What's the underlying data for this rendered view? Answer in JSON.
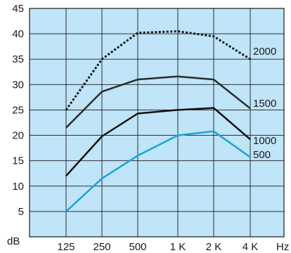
{
  "chart_data": {
    "type": "line",
    "x_categories": [
      "125",
      "250",
      "500",
      "1 K",
      "2 K",
      "4 K"
    ],
    "x_unit_label": "Hz",
    "y_unit_label": "dB",
    "y_ticks": [
      5,
      10,
      15,
      20,
      25,
      30,
      35,
      40,
      45
    ],
    "ylim": [
      0,
      45
    ],
    "grid": true,
    "plot_background": "#c0e4f8",
    "series": [
      {
        "name": "2000",
        "values": [
          25,
          35,
          40.2,
          40.5,
          39.5,
          35
        ],
        "color": "#1a1a1a",
        "style": "dotted"
      },
      {
        "name": "1500",
        "values": [
          21.5,
          28.6,
          31,
          31.6,
          31,
          25.3
        ],
        "color": "#2b2b2b",
        "style": "solid"
      },
      {
        "name": "1000",
        "values": [
          12,
          19.8,
          24.3,
          25,
          25.4,
          19.2
        ],
        "color": "#111111",
        "style": "solid"
      },
      {
        "name": "500",
        "values": [
          5,
          11.5,
          16,
          20,
          20.8,
          15.7
        ],
        "color": "#1aa3dd",
        "style": "solid"
      }
    ]
  }
}
